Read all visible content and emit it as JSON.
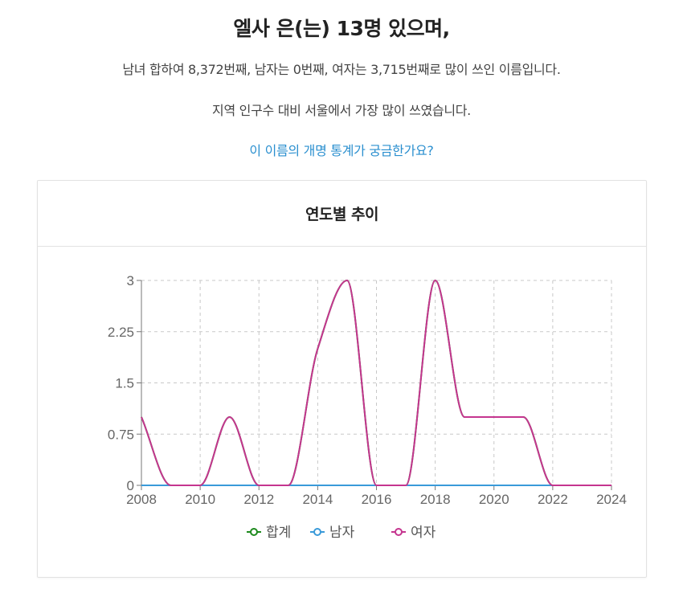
{
  "summary": {
    "headline": "엘사 은(는) 13명 있으며,",
    "rank_text": "남녀 합하여 8,372번째, 남자는 0번째, 여자는 3,715번째로 많이 쓰인 이름입니다.",
    "region_text": "지역 인구수 대비 서울에서 가장 많이 쓰였습니다.",
    "rename_link": "이 이름의 개명 통계가 궁금한가요?"
  },
  "card": {
    "title": "연도별 추이"
  },
  "colors": {
    "total": "#1e8a1e",
    "male": "#3a9ad9",
    "female": "#c5358f",
    "link": "#2a8fcf"
  },
  "chart_data": {
    "type": "line",
    "title": "연도별 추이",
    "xlabel": "",
    "ylabel": "",
    "x": [
      2008,
      2009,
      2010,
      2011,
      2012,
      2013,
      2014,
      2015,
      2016,
      2017,
      2018,
      2019,
      2020,
      2021,
      2022,
      2023,
      2024
    ],
    "series": [
      {
        "name": "합계",
        "color": "#1e8a1e",
        "values": [
          1,
          0,
          0,
          1,
          0,
          0,
          2,
          3,
          0,
          0,
          3,
          1,
          1,
          1,
          0,
          0,
          0
        ]
      },
      {
        "name": "남자",
        "color": "#3a9ad9",
        "values": [
          0,
          0,
          0,
          0,
          0,
          0,
          0,
          0,
          0,
          0,
          0,
          0,
          0,
          0,
          0,
          0,
          0
        ]
      },
      {
        "name": "여자",
        "color": "#c5358f",
        "values": [
          1,
          0,
          0,
          1,
          0,
          0,
          2,
          3,
          0,
          0,
          3,
          1,
          1,
          1,
          0,
          0,
          0
        ]
      }
    ],
    "x_ticks": [
      "2008",
      "2010",
      "2012",
      "2014",
      "2016",
      "2018",
      "2020",
      "2022",
      "2024"
    ],
    "y_ticks": [
      "0",
      "0.75",
      "1.5",
      "2.25",
      "3"
    ],
    "ylim": [
      0,
      3
    ],
    "xlim": [
      2008,
      2024
    ],
    "grid": true,
    "legend_position": "bottom",
    "legend": [
      "합계",
      "남자",
      "여자"
    ]
  }
}
